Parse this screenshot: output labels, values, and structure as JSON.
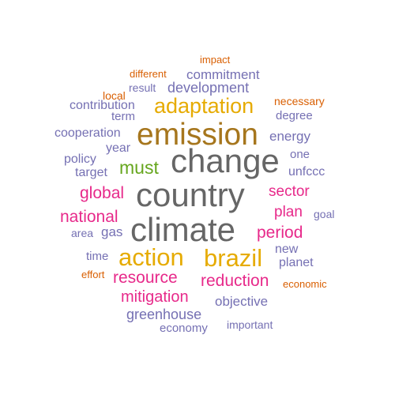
{
  "colors": {
    "purple": "#7570b3",
    "orange": "#d95f02",
    "pink": "#e7298a",
    "gold": "#e6ab02",
    "olive": "#a6761d",
    "green": "#66a61e",
    "gray": "#666666"
  },
  "words": [
    {
      "text": "impact",
      "color": "orange",
      "cls": "p-impact"
    },
    {
      "text": "different",
      "color": "orange",
      "cls": "p-different"
    },
    {
      "text": "commitment",
      "color": "purple",
      "cls": "p-commitment"
    },
    {
      "text": "result",
      "color": "purple",
      "cls": "p-result"
    },
    {
      "text": "development",
      "color": "purple",
      "cls": "p-development"
    },
    {
      "text": "local",
      "color": "orange",
      "cls": "p-local"
    },
    {
      "text": "contribution",
      "color": "purple",
      "cls": "p-contribution"
    },
    {
      "text": "adaptation",
      "color": "gold",
      "cls": "p-adaptation"
    },
    {
      "text": "necessary",
      "color": "orange",
      "cls": "p-necessary"
    },
    {
      "text": "term",
      "color": "purple",
      "cls": "p-term"
    },
    {
      "text": "degree",
      "color": "purple",
      "cls": "p-degree"
    },
    {
      "text": "cooperation",
      "color": "purple",
      "cls": "p-cooperation"
    },
    {
      "text": "emission",
      "color": "olive",
      "cls": "p-emission"
    },
    {
      "text": "energy",
      "color": "purple",
      "cls": "p-energy"
    },
    {
      "text": "year",
      "color": "purple",
      "cls": "p-year"
    },
    {
      "text": "change",
      "color": "gray",
      "cls": "p-change"
    },
    {
      "text": "one",
      "color": "purple",
      "cls": "p-one"
    },
    {
      "text": "policy",
      "color": "purple",
      "cls": "p-policy"
    },
    {
      "text": "must",
      "color": "green",
      "cls": "p-must"
    },
    {
      "text": "target",
      "color": "purple",
      "cls": "p-target"
    },
    {
      "text": "unfccc",
      "color": "purple",
      "cls": "p-unfccc"
    },
    {
      "text": "global",
      "color": "pink",
      "cls": "p-global"
    },
    {
      "text": "country",
      "color": "gray",
      "cls": "p-country"
    },
    {
      "text": "sector",
      "color": "pink",
      "cls": "p-sector"
    },
    {
      "text": "plan",
      "color": "pink",
      "cls": "p-plan"
    },
    {
      "text": "goal",
      "color": "purple",
      "cls": "p-goal"
    },
    {
      "text": "national",
      "color": "pink",
      "cls": "p-national"
    },
    {
      "text": "climate",
      "color": "gray",
      "cls": "p-climate"
    },
    {
      "text": "area",
      "color": "purple",
      "cls": "p-area"
    },
    {
      "text": "gas",
      "color": "purple",
      "cls": "p-gas"
    },
    {
      "text": "period",
      "color": "pink",
      "cls": "p-period"
    },
    {
      "text": "new",
      "color": "purple",
      "cls": "p-new"
    },
    {
      "text": "action",
      "color": "gold",
      "cls": "p-action"
    },
    {
      "text": "brazil",
      "color": "gold",
      "cls": "p-brazil"
    },
    {
      "text": "time",
      "color": "purple",
      "cls": "p-time"
    },
    {
      "text": "planet",
      "color": "purple",
      "cls": "p-planet"
    },
    {
      "text": "effort",
      "color": "orange",
      "cls": "p-effort"
    },
    {
      "text": "resource",
      "color": "pink",
      "cls": "p-resource"
    },
    {
      "text": "reduction",
      "color": "pink",
      "cls": "p-reduction"
    },
    {
      "text": "economic",
      "color": "orange",
      "cls": "p-economic"
    },
    {
      "text": "mitigation",
      "color": "pink",
      "cls": "p-mitigation"
    },
    {
      "text": "objective",
      "color": "purple",
      "cls": "p-objective"
    },
    {
      "text": "greenhouse",
      "color": "purple",
      "cls": "p-greenhouse"
    },
    {
      "text": "economy",
      "color": "purple",
      "cls": "p-economy"
    },
    {
      "text": "important",
      "color": "purple",
      "cls": "p-important"
    }
  ]
}
